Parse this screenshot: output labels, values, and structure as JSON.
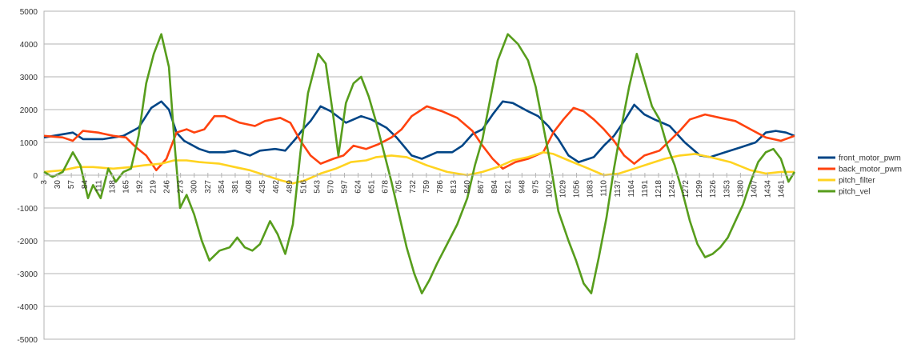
{
  "chart_data": {
    "type": "line",
    "title": "",
    "xlabel": "",
    "ylabel": "",
    "ylim": [
      -5000,
      5000
    ],
    "yticks": [
      -5000,
      -4000,
      -3000,
      -2000,
      -1000,
      0,
      1000,
      2000,
      3000,
      4000,
      5000
    ],
    "xlim": [
      3,
      1487
    ],
    "xticks": [
      3,
      30,
      57,
      84,
      111,
      138,
      165,
      192,
      219,
      246,
      273,
      300,
      327,
      354,
      381,
      408,
      435,
      462,
      489,
      516,
      543,
      570,
      597,
      624,
      651,
      678,
      705,
      732,
      759,
      786,
      813,
      840,
      867,
      894,
      921,
      948,
      975,
      1002,
      1029,
      1056,
      1083,
      1110,
      1137,
      1164,
      1191,
      1218,
      1245,
      1272,
      1299,
      1326,
      1353,
      1380,
      1407,
      1434,
      1461
    ],
    "grid": true,
    "legend_position": "right",
    "series": [
      {
        "name": "front_motor_pwm",
        "color": "#004586",
        "points": [
          [
            3,
            1150
          ],
          [
            60,
            1300
          ],
          [
            80,
            1100
          ],
          [
            120,
            1100
          ],
          [
            160,
            1200
          ],
          [
            190,
            1450
          ],
          [
            215,
            2050
          ],
          [
            235,
            2250
          ],
          [
            250,
            2000
          ],
          [
            265,
            1300
          ],
          [
            280,
            1050
          ],
          [
            310,
            800
          ],
          [
            330,
            700
          ],
          [
            360,
            700
          ],
          [
            380,
            750
          ],
          [
            410,
            600
          ],
          [
            430,
            750
          ],
          [
            460,
            800
          ],
          [
            480,
            750
          ],
          [
            500,
            1100
          ],
          [
            515,
            1400
          ],
          [
            530,
            1650
          ],
          [
            550,
            2100
          ],
          [
            570,
            1950
          ],
          [
            600,
            1600
          ],
          [
            630,
            1800
          ],
          [
            650,
            1700
          ],
          [
            680,
            1450
          ],
          [
            700,
            1150
          ],
          [
            730,
            600
          ],
          [
            750,
            500
          ],
          [
            780,
            700
          ],
          [
            810,
            700
          ],
          [
            830,
            900
          ],
          [
            850,
            1250
          ],
          [
            870,
            1400
          ],
          [
            890,
            1850
          ],
          [
            910,
            2250
          ],
          [
            930,
            2200
          ],
          [
            960,
            1950
          ],
          [
            980,
            1800
          ],
          [
            1000,
            1500
          ],
          [
            1020,
            1100
          ],
          [
            1040,
            600
          ],
          [
            1060,
            400
          ],
          [
            1090,
            550
          ],
          [
            1110,
            900
          ],
          [
            1130,
            1200
          ],
          [
            1150,
            1650
          ],
          [
            1170,
            2150
          ],
          [
            1190,
            1850
          ],
          [
            1210,
            1700
          ],
          [
            1240,
            1500
          ],
          [
            1270,
            1000
          ],
          [
            1300,
            600
          ],
          [
            1320,
            550
          ],
          [
            1350,
            700
          ],
          [
            1380,
            850
          ],
          [
            1410,
            1000
          ],
          [
            1430,
            1300
          ],
          [
            1450,
            1350
          ],
          [
            1470,
            1300
          ],
          [
            1487,
            1200
          ]
        ]
      },
      {
        "name": "back_motor_pwm",
        "color": "#ff420e",
        "points": [
          [
            3,
            1200
          ],
          [
            40,
            1150
          ],
          [
            60,
            1050
          ],
          [
            80,
            1350
          ],
          [
            110,
            1300
          ],
          [
            140,
            1200
          ],
          [
            165,
            1150
          ],
          [
            185,
            850
          ],
          [
            205,
            600
          ],
          [
            225,
            150
          ],
          [
            245,
            500
          ],
          [
            265,
            1300
          ],
          [
            285,
            1400
          ],
          [
            300,
            1300
          ],
          [
            320,
            1400
          ],
          [
            340,
            1800
          ],
          [
            360,
            1800
          ],
          [
            390,
            1600
          ],
          [
            420,
            1500
          ],
          [
            440,
            1650
          ],
          [
            470,
            1750
          ],
          [
            490,
            1600
          ],
          [
            510,
            1050
          ],
          [
            530,
            600
          ],
          [
            550,
            350
          ],
          [
            575,
            500
          ],
          [
            595,
            600
          ],
          [
            615,
            900
          ],
          [
            640,
            800
          ],
          [
            665,
            950
          ],
          [
            690,
            1150
          ],
          [
            710,
            1400
          ],
          [
            730,
            1800
          ],
          [
            760,
            2100
          ],
          [
            790,
            1950
          ],
          [
            820,
            1750
          ],
          [
            850,
            1350
          ],
          [
            870,
            900
          ],
          [
            890,
            500
          ],
          [
            910,
            200
          ],
          [
            935,
            400
          ],
          [
            960,
            500
          ],
          [
            990,
            700
          ],
          [
            1010,
            1300
          ],
          [
            1030,
            1700
          ],
          [
            1050,
            2050
          ],
          [
            1070,
            1950
          ],
          [
            1090,
            1700
          ],
          [
            1110,
            1400
          ],
          [
            1130,
            1050
          ],
          [
            1150,
            600
          ],
          [
            1170,
            350
          ],
          [
            1190,
            600
          ],
          [
            1220,
            750
          ],
          [
            1240,
            1050
          ],
          [
            1260,
            1350
          ],
          [
            1280,
            1700
          ],
          [
            1310,
            1850
          ],
          [
            1340,
            1750
          ],
          [
            1370,
            1650
          ],
          [
            1400,
            1400
          ],
          [
            1430,
            1150
          ],
          [
            1460,
            1050
          ],
          [
            1487,
            1200
          ]
        ]
      },
      {
        "name": "pitch_filter",
        "color": "#ffd320",
        "points": [
          [
            3,
            100
          ],
          [
            40,
            150
          ],
          [
            70,
            250
          ],
          [
            100,
            250
          ],
          [
            140,
            200
          ],
          [
            175,
            250
          ],
          [
            200,
            300
          ],
          [
            235,
            350
          ],
          [
            260,
            450
          ],
          [
            285,
            450
          ],
          [
            310,
            400
          ],
          [
            350,
            350
          ],
          [
            380,
            250
          ],
          [
            410,
            150
          ],
          [
            440,
            0
          ],
          [
            470,
            -150
          ],
          [
            495,
            -250
          ],
          [
            520,
            -150
          ],
          [
            550,
            50
          ],
          [
            580,
            200
          ],
          [
            610,
            400
          ],
          [
            640,
            450
          ],
          [
            660,
            550
          ],
          [
            690,
            600
          ],
          [
            720,
            550
          ],
          [
            760,
            300
          ],
          [
            800,
            100
          ],
          [
            840,
            0
          ],
          [
            870,
            100
          ],
          [
            900,
            250
          ],
          [
            930,
            450
          ],
          [
            960,
            550
          ],
          [
            990,
            700
          ],
          [
            1010,
            650
          ],
          [
            1040,
            450
          ],
          [
            1080,
            200
          ],
          [
            1110,
            0
          ],
          [
            1140,
            50
          ],
          [
            1170,
            200
          ],
          [
            1200,
            350
          ],
          [
            1230,
            500
          ],
          [
            1260,
            600
          ],
          [
            1290,
            650
          ],
          [
            1320,
            550
          ],
          [
            1360,
            400
          ],
          [
            1400,
            150
          ],
          [
            1430,
            50
          ],
          [
            1460,
            100
          ],
          [
            1487,
            100
          ]
        ]
      },
      {
        "name": "pitch_vel",
        "color": "#579d1c",
        "points": [
          [
            3,
            100
          ],
          [
            20,
            -50
          ],
          [
            40,
            100
          ],
          [
            60,
            700
          ],
          [
            75,
            300
          ],
          [
            90,
            -700
          ],
          [
            100,
            -300
          ],
          [
            115,
            -700
          ],
          [
            130,
            200
          ],
          [
            145,
            -200
          ],
          [
            160,
            100
          ],
          [
            175,
            200
          ],
          [
            190,
            1200
          ],
          [
            205,
            2800
          ],
          [
            220,
            3700
          ],
          [
            235,
            4300
          ],
          [
            250,
            3300
          ],
          [
            262,
            800
          ],
          [
            272,
            -1000
          ],
          [
            285,
            -600
          ],
          [
            300,
            -1200
          ],
          [
            315,
            -2000
          ],
          [
            330,
            -2600
          ],
          [
            350,
            -2300
          ],
          [
            370,
            -2200
          ],
          [
            385,
            -1900
          ],
          [
            400,
            -2200
          ],
          [
            415,
            -2300
          ],
          [
            430,
            -2100
          ],
          [
            450,
            -1400
          ],
          [
            465,
            -1800
          ],
          [
            480,
            -2400
          ],
          [
            495,
            -1500
          ],
          [
            510,
            700
          ],
          [
            525,
            2500
          ],
          [
            545,
            3700
          ],
          [
            560,
            3400
          ],
          [
            575,
            1800
          ],
          [
            585,
            600
          ],
          [
            600,
            2200
          ],
          [
            615,
            2800
          ],
          [
            630,
            3000
          ],
          [
            645,
            2400
          ],
          [
            660,
            1600
          ],
          [
            675,
            700
          ],
          [
            690,
            -200
          ],
          [
            705,
            -1200
          ],
          [
            720,
            -2200
          ],
          [
            735,
            -3000
          ],
          [
            750,
            -3600
          ],
          [
            765,
            -3200
          ],
          [
            780,
            -2700
          ],
          [
            800,
            -2100
          ],
          [
            820,
            -1500
          ],
          [
            840,
            -700
          ],
          [
            855,
            300
          ],
          [
            870,
            1100
          ],
          [
            885,
            2300
          ],
          [
            900,
            3500
          ],
          [
            920,
            4300
          ],
          [
            940,
            4000
          ],
          [
            960,
            3500
          ],
          [
            975,
            2700
          ],
          [
            990,
            1500
          ],
          [
            1005,
            300
          ],
          [
            1020,
            -1100
          ],
          [
            1040,
            -2000
          ],
          [
            1055,
            -2600
          ],
          [
            1070,
            -3300
          ],
          [
            1085,
            -3600
          ],
          [
            1100,
            -2500
          ],
          [
            1115,
            -1300
          ],
          [
            1130,
            200
          ],
          [
            1145,
            1500
          ],
          [
            1160,
            2700
          ],
          [
            1175,
            3700
          ],
          [
            1190,
            2900
          ],
          [
            1205,
            2100
          ],
          [
            1220,
            1700
          ],
          [
            1235,
            900
          ],
          [
            1250,
            300
          ],
          [
            1265,
            -500
          ],
          [
            1280,
            -1400
          ],
          [
            1295,
            -2100
          ],
          [
            1310,
            -2500
          ],
          [
            1325,
            -2400
          ],
          [
            1340,
            -2200
          ],
          [
            1355,
            -1900
          ],
          [
            1370,
            -1400
          ],
          [
            1385,
            -900
          ],
          [
            1400,
            -200
          ],
          [
            1415,
            400
          ],
          [
            1430,
            700
          ],
          [
            1445,
            800
          ],
          [
            1460,
            500
          ],
          [
            1475,
            -200
          ],
          [
            1487,
            100
          ]
        ]
      }
    ]
  }
}
